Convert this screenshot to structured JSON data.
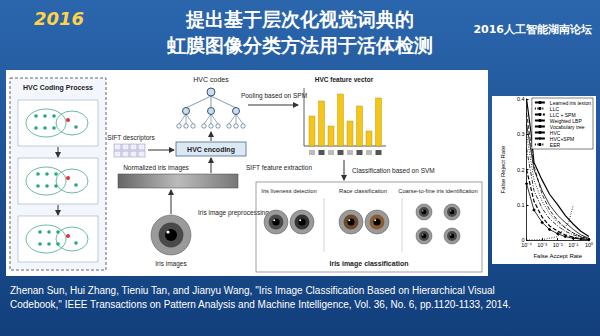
{
  "header": {
    "logo_text": "2016",
    "title_lines": [
      "提出基于层次化视觉词典的",
      "虹膜图像分类方法用于活体检测"
    ],
    "forum": "2016人工智能湖南论坛"
  },
  "diagram": {
    "coding_panel": "HVC Coding Process",
    "hvc_codes": "HVC codes",
    "pooling": "Pooling based on SPM",
    "feature_vector": "HVC feature vector",
    "hvc_encoding": "HVC encoding",
    "sift_descriptors": "SIFT descriptors",
    "sift_extraction": "SIFT feature extraction",
    "normalized": "Normalized iris images",
    "preprocessing": "Iris image preprocessing",
    "iris_images": "Iris images",
    "svm": "Classification based on SVM",
    "tasks": [
      "Iris liveness detection",
      "Race classification",
      "Coarse-to-fine iris identification"
    ],
    "classification": "Iris image classification"
  },
  "chart_data": {
    "type": "line",
    "x_label": "False Accept Rate",
    "y_label": "False Reject Rate",
    "log": "x",
    "xlim": [
      0.0001,
      1
    ],
    "xticks": [
      {
        "value": 0.0001,
        "label": "10⁻⁴"
      },
      {
        "value": 0.001,
        "label": "10⁻³"
      },
      {
        "value": 0.01,
        "label": "10⁻²"
      },
      {
        "value": 0.1,
        "label": "10⁻¹"
      },
      {
        "value": 1,
        "label": "10⁰"
      }
    ],
    "ylim": [
      0,
      0.4
    ],
    "yticks": [
      0,
      0.1,
      0.2,
      0.3,
      0.4
    ],
    "grid": false,
    "legend": "top-right",
    "series": [
      {
        "name": "Learned iris texton",
        "color": "#000000",
        "line_style": "solid",
        "marker": "none",
        "x": [
          0.0001,
          0.0003,
          0.001,
          0.003,
          0.01,
          0.03,
          0.1,
          0.3,
          1
        ],
        "values": [
          0.33,
          0.2,
          0.14,
          0.1,
          0.07,
          0.05,
          0.03,
          0.015,
          0.005
        ]
      },
      {
        "name": "LLC",
        "color": "#000000",
        "line_style": "dotted",
        "marker": "none",
        "x": [
          0.0001,
          0.0003,
          0.001,
          0.003,
          0.01,
          0.03,
          0.1,
          0.3,
          1
        ],
        "values": [
          0.3,
          0.17,
          0.11,
          0.075,
          0.05,
          0.035,
          0.02,
          0.01,
          0.004
        ]
      },
      {
        "name": "LLC + SPM",
        "color": "#000000",
        "line_style": "dashdot",
        "marker": "none",
        "x": [
          0.0001,
          0.0003,
          0.001,
          0.003,
          0.01,
          0.03,
          0.1,
          0.3,
          1
        ],
        "values": [
          0.26,
          0.14,
          0.09,
          0.06,
          0.04,
          0.025,
          0.015,
          0.008,
          0.003
        ]
      },
      {
        "name": "Weighted LBP",
        "color": "#000000",
        "line_style": "dashed",
        "marker": "none",
        "x": [
          0.0001,
          0.0003,
          0.001,
          0.003,
          0.01,
          0.03,
          0.1,
          0.3,
          1
        ],
        "values": [
          0.36,
          0.21,
          0.13,
          0.085,
          0.055,
          0.035,
          0.02,
          0.01,
          0.004
        ]
      },
      {
        "name": "Vocabulary tree",
        "color": "#000000",
        "line_style": "solid",
        "marker": "none",
        "x": [
          0.0001,
          0.0002,
          0.0003,
          0.001,
          0.003,
          0.01,
          0.03,
          0.1,
          0.3,
          1
        ],
        "values": [
          0.4,
          0.3,
          0.22,
          0.17,
          0.13,
          0.1,
          0.07,
          0.045,
          0.025,
          0.01
        ]
      },
      {
        "name": "HVC",
        "color": "#000000",
        "line_style": "dashed",
        "marker": "none",
        "x": [
          0.0001,
          0.0003,
          0.001,
          0.003,
          0.01,
          0.03,
          0.1,
          0.3,
          1
        ],
        "values": [
          0.2,
          0.11,
          0.065,
          0.04,
          0.025,
          0.015,
          0.008,
          0.004,
          0.002
        ]
      },
      {
        "name": "HVC+SPM",
        "color": "#000000",
        "line_style": "solid",
        "marker": "diamond",
        "x": [
          0.0001,
          0.0003,
          0.001,
          0.003,
          0.01,
          0.03,
          0.1,
          0.3,
          1
        ],
        "values": [
          0.16,
          0.085,
          0.05,
          0.03,
          0.018,
          0.01,
          0.005,
          0.003,
          0.001
        ]
      },
      {
        "name": "EER",
        "color": "#000000",
        "line_style": "dotted",
        "marker": "none",
        "x": [
          0.0001,
          0.001,
          0.01,
          0.05,
          0.1
        ],
        "values": [
          0.0001,
          0.001,
          0.01,
          0.05,
          0.1
        ]
      }
    ]
  },
  "citation": [
    "Zhenan Sun, Hui Zhang, Tieniu Tan, and Jianyu Wang, \"Iris Image Classification Based on Hierarchical Visual",
    "Codebook,\" IEEE Transactions on Pattern Analysis and Machine Intelligence, Vol. 36, No. 6, pp.1120-1133, 2014."
  ]
}
